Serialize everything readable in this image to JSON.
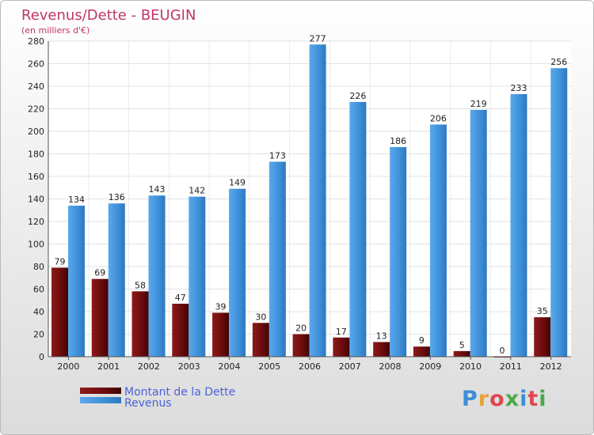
{
  "chart_data": {
    "type": "bar",
    "title": "Revenus/Dette - BEUGIN",
    "subtitle": "(en milliers d'€)",
    "categories": [
      "2000",
      "2001",
      "2002",
      "2003",
      "2004",
      "2005",
      "2006",
      "2007",
      "2008",
      "2009",
      "2010",
      "2011",
      "2012"
    ],
    "series": [
      {
        "name": "Montant de la Dette",
        "color": "#7a0f0f",
        "values": [
          79,
          69,
          58,
          47,
          39,
          30,
          20,
          17,
          13,
          9,
          5,
          0,
          35
        ]
      },
      {
        "name": "Revenus",
        "color": "#3d8fd8",
        "values": [
          134,
          136,
          143,
          142,
          149,
          173,
          277,
          226,
          186,
          206,
          219,
          233,
          256
        ]
      }
    ],
    "ylim": [
      0,
      280
    ],
    "yticks": [
      0,
      20,
      40,
      60,
      80,
      100,
      120,
      140,
      160,
      180,
      200,
      220,
      240,
      260,
      280
    ],
    "grid": true,
    "legend": "bottom-left"
  },
  "logo": {
    "text": "Proxiti",
    "letters": [
      "P",
      "r",
      "o",
      "x",
      "i",
      "t",
      "i"
    ]
  }
}
